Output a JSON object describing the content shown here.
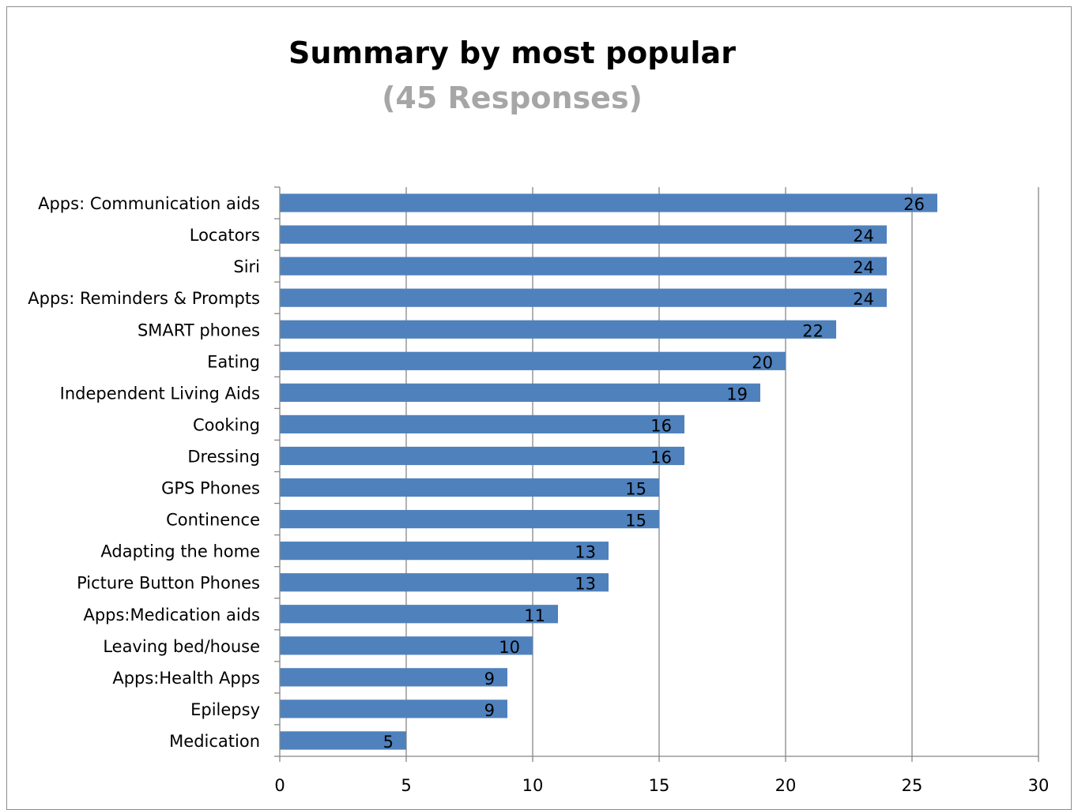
{
  "chart_data": {
    "type": "bar",
    "orientation": "horizontal",
    "title": "Summary by most popular",
    "subtitle": "(45 Responses)",
    "categories": [
      "Apps: Communication aids",
      "Locators",
      "Siri",
      "Apps: Reminders & Prompts",
      "SMART phones",
      "Eating",
      "Independent Living Aids",
      "Cooking",
      "Dressing",
      "GPS Phones",
      "Continence",
      "Adapting the home",
      "Picture Button Phones",
      "Apps:Medication aids",
      "Leaving bed/house",
      "Apps:Health Apps",
      "Epilepsy",
      "Medication"
    ],
    "values": [
      26,
      24,
      24,
      24,
      22,
      20,
      19,
      16,
      16,
      15,
      15,
      13,
      13,
      11,
      10,
      9,
      9,
      5
    ],
    "xlim": [
      0,
      30
    ],
    "xticks": [
      0,
      5,
      10,
      15,
      20,
      25,
      30
    ],
    "grid": true,
    "data_labels": true,
    "legend": "none",
    "bar_color": "#4f81bd",
    "grid_color": "#878787"
  }
}
